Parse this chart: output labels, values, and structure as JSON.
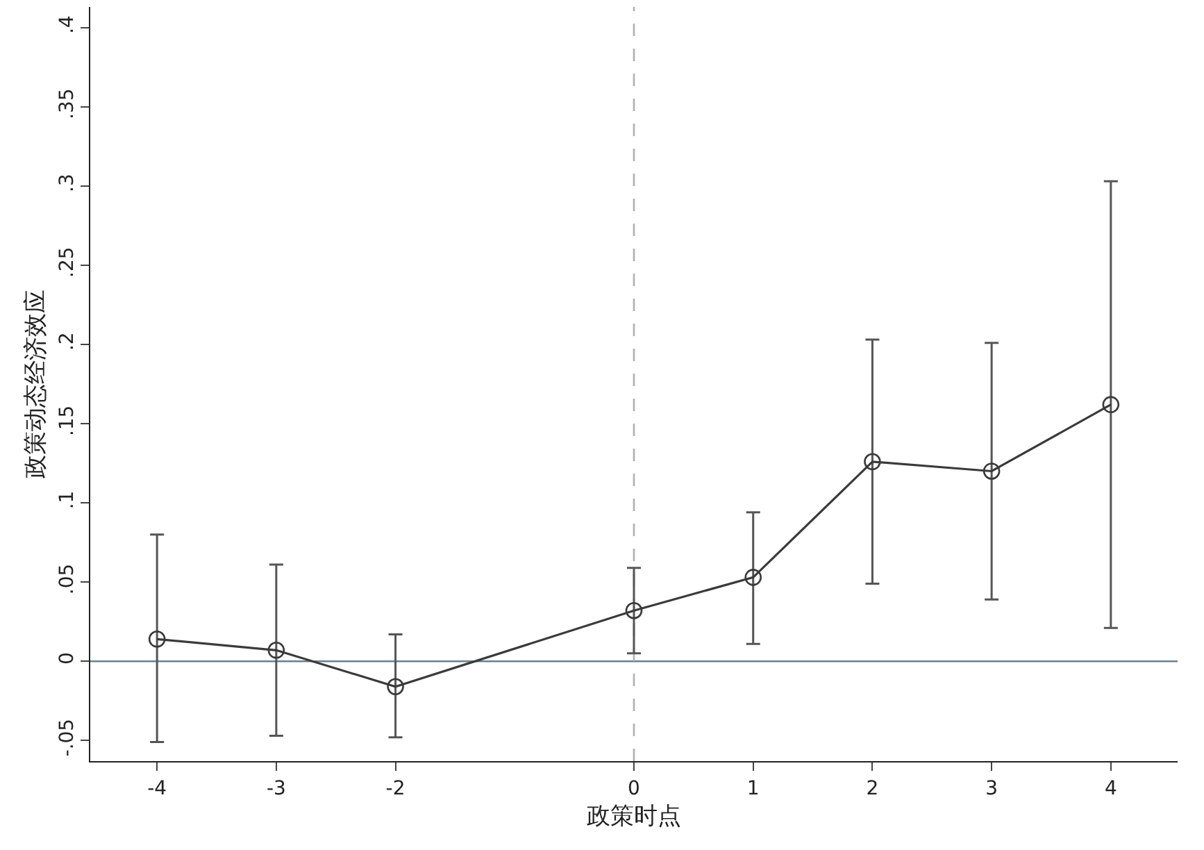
{
  "chart_data": {
    "type": "line",
    "xlabel": "政策时点",
    "ylabel": "政策动态经济效应",
    "x": [
      -4,
      -3,
      -2,
      0,
      1,
      2,
      3,
      4
    ],
    "series": [
      {
        "color": "#3a3a3a",
        "values": [
          0.014,
          0.007,
          -0.016,
          0.032,
          0.053,
          0.126,
          0.12,
          0.162
        ],
        "errors": [
          [
            -0.051,
            0.08
          ],
          [
            -0.047,
            0.061
          ],
          [
            -0.048,
            0.017
          ],
          [
            0.005,
            0.059
          ],
          [
            0.011,
            0.094
          ],
          [
            0.049,
            0.203
          ],
          [
            0.039,
            0.201
          ],
          [
            0.021,
            0.303
          ]
        ]
      }
    ],
    "marker": "circle",
    "line_style": "solid",
    "grid": false,
    "legend": false,
    "xlim": [
      -4.56,
      4.56
    ],
    "xticks": [
      -4,
      -3,
      -2,
      0,
      1,
      2,
      3,
      4
    ],
    "ylim": [
      -0.063,
      0.413
    ],
    "yticks": [
      {
        "value": -0.05,
        "label": "-.05"
      },
      0,
      {
        "value": 0.05,
        "label": ".05"
      },
      {
        "value": 0.1,
        "label": ".1"
      },
      {
        "value": 0.15,
        "label": ".15"
      },
      {
        "value": 0.2,
        "label": ".2"
      },
      {
        "value": 0.25,
        "label": ".25"
      },
      {
        "value": 0.3,
        "label": ".3"
      },
      {
        "value": 0.35,
        "label": ".35"
      },
      {
        "value": 0.4,
        "label": ".4"
      }
    ],
    "ref_lines": [
      {
        "axis": "y",
        "value": 0,
        "color": "#6b8090",
        "line_style": "solid"
      },
      {
        "axis": "x",
        "value": 0,
        "color": "#b0b0b0",
        "line_style": "dashed"
      }
    ]
  }
}
